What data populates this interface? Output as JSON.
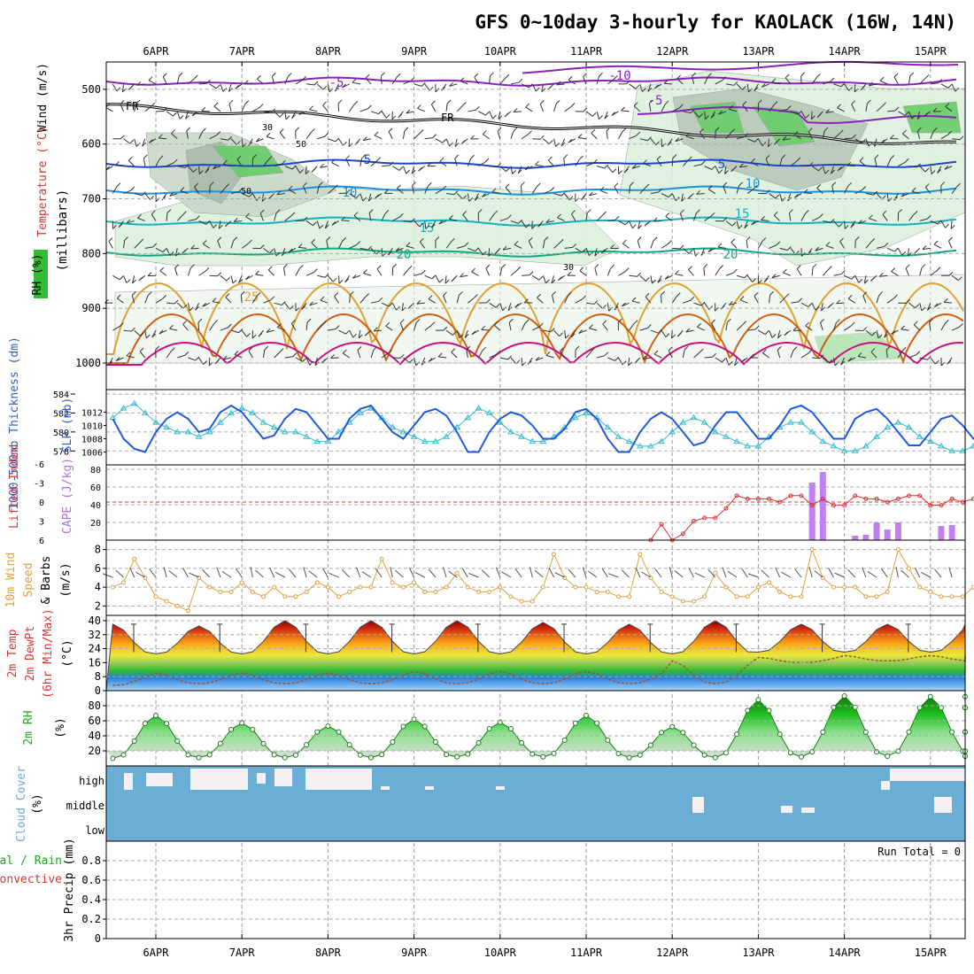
{
  "title": "GFS 0~10day 3-hourly for KAOLACK (16W, 14N)",
  "dates": [
    "6APR",
    "7APR",
    "8APR",
    "9APR",
    "10APR",
    "11APR",
    "12APR",
    "13APR",
    "14APR",
    "15APR"
  ],
  "colors": {
    "rh": "#33cc33",
    "temp_line": "#1e5adc",
    "thick_line": "#33bbcc",
    "li_line": "#e03030",
    "cape_bar": "#c080f0",
    "wind_line": "#e0a040",
    "cloud": "#6aaed6",
    "rh2m": "#22bb22"
  },
  "panels": {
    "profile": {
      "ylabel_wind": "Wind (m/s)",
      "ylabel_temp": "Temperature (°C)",
      "ylabel_rh": "RH (%)",
      "ylabel_mb": "(millibars)",
      "ylim": [
        1000,
        450
      ],
      "yticks": [
        "500",
        "600",
        "700",
        "800",
        "900",
        "1000"
      ],
      "fr_label": "FR",
      "contour_labels": [
        "-10",
        "-5",
        "5",
        "10",
        "15",
        "20",
        "25",
        "30",
        "50"
      ]
    },
    "slp": {
      "ylabel_left": "1000-500mb Thickness (dm)",
      "ylabel_right": "SLP (mb)",
      "thick_ticks": [
        "584",
        "582",
        "580",
        "578"
      ],
      "slp_ticks": [
        "1012",
        "1010",
        "1008",
        "1006"
      ]
    },
    "cape": {
      "ylabel_left": "Lifted Index",
      "ylabel_right": "CAPE (J/kg)",
      "li_ticks": [
        "-6",
        "-3",
        "0",
        "3",
        "6"
      ],
      "cape_ticks": [
        "80",
        "60",
        "40",
        "20"
      ]
    },
    "wind10": {
      "ylabel_left": "10m Wind",
      "ylabel_mid": "Speed",
      "ylabel_right": "& Barbs",
      "ylabel_unit": "(m/s)",
      "ylim": [
        1,
        9
      ],
      "yticks": [
        "8",
        "6",
        "4",
        "2"
      ]
    },
    "temp2m": {
      "ylabel_1": "2m Temp",
      "ylabel_2": "2m DewPt",
      "ylabel_3": "(6hr Min/Max)",
      "ylabel_unit": "(°C)",
      "ylim": [
        0,
        42
      ],
      "yticks": [
        "40",
        "32",
        "24",
        "16",
        "8",
        "0"
      ]
    },
    "rh2m": {
      "ylabel": "2m RH",
      "ylabel_unit": "(%)",
      "ylim": [
        0,
        100
      ],
      "yticks": [
        "80",
        "60",
        "40",
        "20"
      ]
    },
    "cloud": {
      "ylabel": "Cloud Cover",
      "ylabel_unit": "(%)",
      "levels": [
        "high",
        "middle",
        "low"
      ]
    },
    "precip": {
      "ylabel_1": "Total / Rain",
      "ylabel_2": "Convective",
      "ylabel_3": "3hr Precip (mm)",
      "yticks": [
        "0.8",
        "0.6",
        "0.4",
        "0.2",
        "0"
      ],
      "run_total": "Run Total = 0"
    }
  },
  "chart_data": [
    {
      "type": "line",
      "title": "1000-500mb Thickness (dm) / SLP (mb)",
      "x_unit": "3-hour steps from 5APR 12Z",
      "series": [
        {
          "name": "SLP (mb)",
          "values": [
            1011,
            1008,
            1006.5,
            1006,
            1009,
            1011,
            1012,
            1011,
            1009,
            1009.5,
            1012,
            1013,
            1012,
            1010,
            1008,
            1008.5,
            1011,
            1012.5,
            1012,
            1010,
            1008,
            1008,
            1011,
            1012.5,
            1013,
            1011,
            1009,
            1008,
            1010,
            1012,
            1012.5,
            1011.5,
            1009,
            1006,
            1006,
            1009,
            1011,
            1012,
            1011.5,
            1010,
            1008,
            1008,
            1009.5,
            1012,
            1012.5,
            1011,
            1008,
            1006,
            1006,
            1009,
            1011,
            1012,
            1011,
            1009,
            1007,
            1007.5,
            1010,
            1012,
            1012,
            1010,
            1008,
            1008,
            1010,
            1012.5,
            1013,
            1012,
            1010,
            1008,
            1008,
            1011,
            1012,
            1012.5,
            1011,
            1009,
            1007,
            1007,
            1009,
            1011,
            1011.5,
            1010,
            1008,
            1008,
            1009.5,
            1011.5,
            1012,
            1010.5,
            1008,
            1007.5,
            1008,
            1009,
            1009.5
          ]
        },
        {
          "name": "Thickness (dm)",
          "values": [
            581.5,
            582.5,
            583,
            582,
            581,
            580.5,
            580,
            580,
            579.5,
            580,
            581,
            582,
            582.5,
            582,
            581,
            580.5,
            580,
            580,
            579.5,
            579,
            579,
            580,
            581,
            582,
            582.5,
            581.5,
            580.5,
            580,
            579.5,
            579,
            579,
            579.5,
            580.5,
            581.5,
            582.5,
            582,
            581,
            580,
            579.5,
            579,
            579,
            579.5,
            580.5,
            581.5,
            582,
            581.5,
            580.5,
            579.5,
            579,
            578.5,
            578.5,
            579,
            580,
            581,
            581.5,
            581,
            580,
            579.5,
            579,
            578.5,
            578.5,
            579.5,
            580.5,
            581,
            581,
            580,
            579,
            578.5,
            578,
            578,
            578.5,
            579.5,
            580.5,
            581,
            580.5,
            579.5,
            579,
            578.5,
            578,
            578,
            578.5,
            579.5,
            580,
            580,
            579.5,
            579,
            578.5,
            578,
            577.5,
            577,
            577.5
          ]
        }
      ]
    },
    {
      "type": "bar",
      "title": "CAPE (J/kg)",
      "x": [
        "13APR 18Z",
        "13APR 21Z",
        "14APR 06Z",
        "14APR 09Z",
        "14APR 12Z",
        "14APR 15Z",
        "14APR 18Z",
        "15APR 06Z",
        "15APR 09Z"
      ],
      "values": [
        65,
        77,
        5,
        6,
        20,
        12,
        20,
        16,
        17
      ],
      "ylim": [
        0,
        85
      ]
    },
    {
      "type": "line",
      "title": "Lifted Index",
      "x_range": [
        "11APR 18Z",
        "15APR 12Z"
      ],
      "values": [
        6,
        3.5,
        6,
        5,
        3,
        2.5,
        2.5,
        1,
        -1,
        -0.5,
        -0.5,
        -0.5,
        0,
        -1,
        -1,
        0.5,
        -0.5,
        0.5,
        0.5,
        -1,
        -0.5,
        -0.5,
        0,
        -0.5,
        -1,
        -1,
        0.5,
        0.5,
        -0.5,
        0,
        -0.5
      ],
      "ylim": [
        6,
        -6
      ]
    },
    {
      "type": "line",
      "title": "10m Wind Speed (m/s)",
      "ylim": [
        1,
        9
      ],
      "values": [
        4,
        4.5,
        7,
        5,
        3,
        2.5,
        2,
        1.5,
        5,
        4,
        3.5,
        3.5,
        4.5,
        3.5,
        3,
        4,
        3,
        3,
        3.5,
        4.5,
        4,
        3,
        3.5,
        4,
        4,
        7,
        4.5,
        4,
        4.5,
        3.5,
        3.5,
        4,
        5.5,
        4,
        3.5,
        3.5,
        4,
        3,
        2.5,
        2.5,
        4,
        7.5,
        5,
        4,
        4,
        3.5,
        3.5,
        3,
        3,
        7.5,
        5,
        3.5,
        3,
        2.5,
        2.5,
        3,
        5.5,
        4,
        3,
        3,
        4,
        4.5,
        3.5,
        3,
        3,
        8,
        5,
        4,
        4,
        4,
        3,
        3,
        3.5,
        8,
        6,
        4,
        3.5,
        3,
        3,
        3,
        4,
        5.5,
        7,
        5,
        4,
        4.5,
        4.5,
        4,
        4.5,
        4,
        3
      ]
    },
    {
      "type": "area",
      "title": "2m Temp / 2m DewPt (°C)",
      "ylim": [
        0,
        42
      ],
      "series": [
        {
          "name": "2m Temp",
          "days": [
            "6APR",
            "7APR",
            "8APR",
            "9APR",
            "10APR",
            "11APR",
            "12APR",
            "13APR",
            "14APR",
            "15APR"
          ],
          "daily_max": [
            38,
            37,
            40,
            40,
            40,
            39,
            38,
            40,
            38,
            38
          ],
          "daily_min": [
            21,
            21,
            21,
            21,
            21,
            21,
            21,
            21,
            22,
            22
          ]
        },
        {
          "name": "2m DewPt",
          "days": [
            "6APR",
            "7APR",
            "8APR",
            "9APR",
            "10APR",
            "11APR",
            "12APR",
            "13APR",
            "14APR",
            "15APR"
          ],
          "daily_max": [
            9,
            10,
            10,
            10,
            11,
            11,
            11,
            17,
            19,
            20
          ],
          "daily_min": [
            3,
            4,
            4,
            4,
            4,
            4,
            4,
            4,
            16,
            17
          ]
        }
      ]
    },
    {
      "type": "area",
      "title": "2m RH (%)",
      "ylim": [
        0,
        100
      ],
      "days": [
        "6APR",
        "7APR",
        "8APR",
        "9APR",
        "10APR",
        "11APR",
        "12APR",
        "13APR",
        "14APR",
        "15APR"
      ],
      "daily_max": [
        67,
        57,
        53,
        62,
        58,
        67,
        52,
        88,
        93,
        92
      ],
      "daily_min": [
        10,
        11,
        11,
        11,
        12,
        12,
        11,
        11,
        12,
        13
      ]
    }
  ]
}
